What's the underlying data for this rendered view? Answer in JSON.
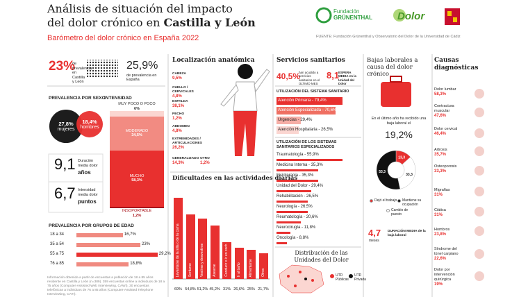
{
  "header": {
    "title_1": "Análisis de situación del impacto",
    "title_2": "del dolor crónico en ",
    "title_bold": "Castilla y León",
    "subtitle": "Barómetro del dolor crónico en España 2022",
    "logo_1": "Fundación",
    "logo_1b": "GRÜNENTHAL",
    "logo_2": "Dolor",
    "source": "FUENTE: Fundación Grünenthal y Observatorio del Dolor de la Universidad de Cádiz"
  },
  "prevalence": {
    "region_value": "23%",
    "region_label": "de prevalencia en Castilla y León",
    "spain_value": "25,9%",
    "spain_label": "de prevalencia en España"
  },
  "sex": {
    "title": "PREVALENCIA POR SEXO",
    "women": {
      "value": 27.8,
      "label": "27,8%",
      "name": "mujeres"
    },
    "men": {
      "value": 18.4,
      "label": "18,4%",
      "name": "hombres"
    }
  },
  "intensity": {
    "title": "INTENSIDAD",
    "items": [
      {
        "name": "MUY POCO O POCO",
        "value": 6,
        "label": "6%"
      },
      {
        "name": "MODERADO",
        "value": 34.5,
        "label": "34,5%"
      },
      {
        "name": "MUCHO",
        "value": 58.3,
        "label": "58,3%"
      },
      {
        "name": "INSOPORTABLE",
        "value": 1.2,
        "label": "1,2%"
      }
    ]
  },
  "duration": {
    "value": "9,1",
    "label": "Duración media dolor",
    "unit": "años"
  },
  "intensity_mean": {
    "value": "6,7",
    "label": "Intensidad media dolor",
    "unit": "puntos"
  },
  "age": {
    "title": "PREVALENCIA POR GRUPOS DE EDAD",
    "groups": [
      {
        "name": "18 a 34",
        "value": 16.7,
        "label": "16,7%"
      },
      {
        "name": "35 a 54",
        "value": 23,
        "label": "23%"
      },
      {
        "name": "55 a 75",
        "value": 29.2,
        "label": "29,2%"
      },
      {
        "name": "76 a 85",
        "value": 18.8,
        "label": "18,8%"
      }
    ]
  },
  "footnote": "Información obtenida a partir de encuestas a población de 18 a 85 años residente en Castilla y León (n=389). 359 encuestas online a individuos de 18 a 75 años (Computer-Assisted Web Interviewing, CAWI), 30 encuestas telefónicas a individuos de 76 a 85 años (Computer-Assisted Telephone Interviewing, CATI).",
  "anatomy": {
    "title": "Localización anatómica",
    "items": [
      {
        "name": "CABEZA",
        "label": "9,5%"
      },
      {
        "name": "CUELLO / CERVICALES",
        "label": "4,8%"
      },
      {
        "name": "ESPALDA",
        "label": "38,1%"
      },
      {
        "name": "PECHO",
        "label": "1,2%"
      },
      {
        "name": "ABDOMEN",
        "label": "4,8%"
      },
      {
        "name": "EXTREMIDADES / ARTICULACIONES",
        "label": "26,2%"
      },
      {
        "name": "GENERALIZADO",
        "label": "14,3%"
      },
      {
        "name": "OTRO",
        "label": "1,2%"
      }
    ]
  },
  "difficulties": {
    "title": "Dificultades en las actividades diarias",
    "items": [
      {
        "name": "Levantarse de la silla o de la cama",
        "value": 69,
        "label": "69%"
      },
      {
        "name": "Sentarse",
        "value": 54.8,
        "label": "54,8%"
      },
      {
        "name": "Vestirse y desvestirse",
        "value": 51.2,
        "label": "51,2%"
      },
      {
        "name": "Asearse",
        "value": 45.2,
        "label": "45,2%"
      },
      {
        "name": "Conducir o ir en coche",
        "value": 31,
        "label": "31%"
      },
      {
        "name": "Ir al baño",
        "value": 26.6,
        "label": "26,6%"
      },
      {
        "name": "Alimentarse",
        "value": 25,
        "label": "25%"
      },
      {
        "name": "Otros",
        "value": 21.7,
        "label": "21,7%"
      }
    ]
  },
  "services": {
    "title": "Servicios sanitarios",
    "visits": {
      "value": "40,5%",
      "label": "han acudido a servicios sanitarios en el ÚLTIMO MES"
    },
    "wait": {
      "value": "8,1",
      "label": "ESPERA MEDIA en la Unidad del Dolor"
    },
    "system": {
      "title": "UTILIZACIÓN DEL SISTEMA SANITARIO",
      "items": [
        {
          "text": "Atención Primaria - 79,4%",
          "value": 79.4,
          "color": "#e8302f"
        },
        {
          "text": "Atención Especializada - 70,6%",
          "value": 70.6,
          "color": "#ef6f62"
        },
        {
          "text": "Urgencias - 29,4%",
          "value": 29.4,
          "color": "#f6aea6"
        },
        {
          "text": "Atención Hospitalaria - 26,5%",
          "value": 26.5,
          "color": "#fbd6d1"
        }
      ]
    },
    "specialized": {
      "title": "UTILIZACIÓN DE LOS SISTEMAS SANITARIOS ESPECIALIZADOS",
      "items": [
        {
          "text": "Traumatología - 55,9%",
          "value": 55.9
        },
        {
          "text": "Medicina Interna - 35,3%",
          "value": 35.3
        },
        {
          "text": "Fisioterapia - 35,3%",
          "value": 35.3
        },
        {
          "text": "Unidad del Dolor - 29,4%",
          "value": 29.4
        },
        {
          "text": "Rehabilitación - 26,5%",
          "value": 26.5
        },
        {
          "text": "Neurología - 26,5%",
          "value": 26.5
        },
        {
          "text": "Reumatología - 20,6%",
          "value": 20.6
        },
        {
          "text": "Neurocirugía - 11,8%",
          "value": 11.8
        },
        {
          "text": "Oncología - 8,8%",
          "value": 8.8
        }
      ]
    }
  },
  "sick_leave": {
    "title": "Bajas laborales a causa del dolor crónico",
    "intro": "En el último año ha recibido una baja laboral el",
    "value": "19,2%",
    "outcomes": [
      {
        "name": "Dejó el trabajo",
        "value": 13.3,
        "label": "13,3",
        "color": "#e8302f"
      },
      {
        "name": "Cambio de puesto",
        "value": 33.3,
        "label": "33,3",
        "color": "#ffffff"
      },
      {
        "name": "Mantiene su ocupación",
        "value": 53.3,
        "label": "53,3",
        "color": "#111111"
      }
    ],
    "duration": {
      "value": "4,7",
      "unit": "meses",
      "label": "DURACIÓN MEDIA de la baja laboral"
    }
  },
  "units": {
    "title": "Distribución de las Unidades del Dolor",
    "public": "UTD Públicas",
    "private": "UTD Privada"
  },
  "causes": {
    "title": "Causas diagnósticas",
    "items": [
      {
        "name": "Dolor lumbar",
        "label": "58,3%"
      },
      {
        "name": "Contractura muscular",
        "label": "47,6%"
      },
      {
        "name": "Dolor cervical",
        "label": "46,4%"
      },
      {
        "name": "Artrosis",
        "label": "35,7%"
      },
      {
        "name": "Osteoporosis",
        "label": "33,3%"
      },
      {
        "name": "Migrañas",
        "label": "31%"
      },
      {
        "name": "Ciática",
        "label": "31%"
      },
      {
        "name": "Hombros",
        "label": "23,8%"
      },
      {
        "name": "Síndrome del túnel carpiano",
        "label": "22,6%"
      },
      {
        "name": "Dolor por intervención quirúrgica",
        "label": "19%"
      }
    ]
  }
}
